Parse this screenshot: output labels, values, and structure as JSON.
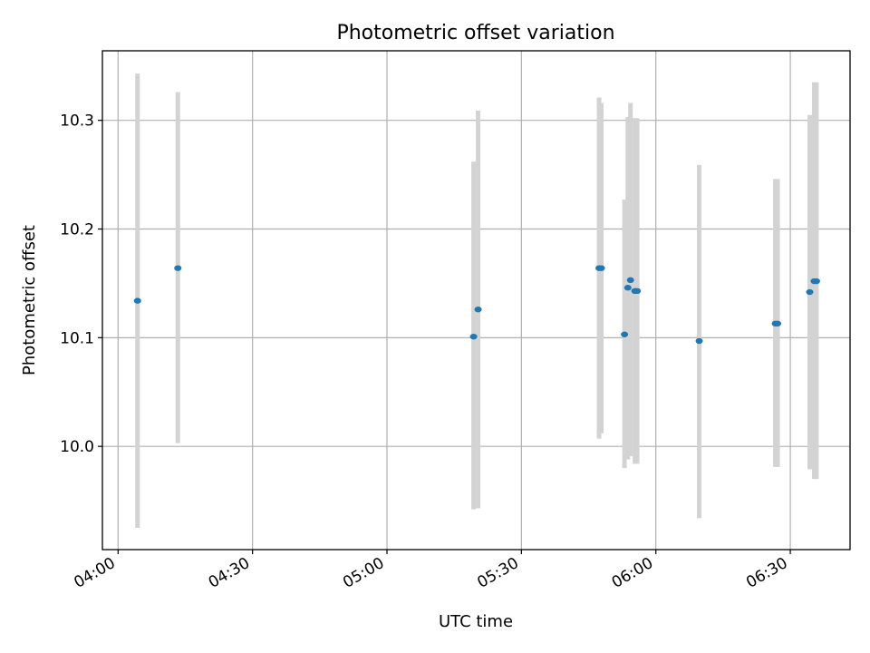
{
  "chart_data": {
    "type": "scatter",
    "title": "Photometric offset variation",
    "xlabel": "UTC time",
    "ylabel": "Photometric offset",
    "x_axis_type": "time",
    "x_ticks": [
      "04:00",
      "04:30",
      "05:00",
      "05:30",
      "06:00",
      "06:30"
    ],
    "y_ticks": [
      "10.0",
      "10.1",
      "10.2",
      "10.3"
    ],
    "xlim": [
      "03:56:30",
      "06:43:20"
    ],
    "ylim": [
      9.905,
      10.364
    ],
    "grid": true,
    "colors": {
      "point": "#1f77b4",
      "errorbar": "#d3d3d3",
      "grid": "#b0b0b0"
    },
    "points": [
      {
        "x": "04:04:20",
        "y": 10.134,
        "yerr_low": 9.925,
        "yerr_high": 10.343
      },
      {
        "x": "04:13:20",
        "y": 10.164,
        "yerr_low": 10.003,
        "yerr_high": 10.326
      },
      {
        "x": "05:19:20",
        "y": 10.101,
        "yerr_low": 9.942,
        "yerr_high": 10.262
      },
      {
        "x": "05:20:20",
        "y": 10.126,
        "yerr_low": 9.943,
        "yerr_high": 10.309
      },
      {
        "x": "05:47:20",
        "y": 10.164,
        "yerr_low": 10.007,
        "yerr_high": 10.321
      },
      {
        "x": "05:47:50",
        "y": 10.164,
        "yerr_low": 10.012,
        "yerr_high": 10.316
      },
      {
        "x": "05:53:00",
        "y": 10.103,
        "yerr_low": 9.98,
        "yerr_high": 10.227
      },
      {
        "x": "05:53:45",
        "y": 10.146,
        "yerr_low": 9.988,
        "yerr_high": 10.303
      },
      {
        "x": "05:54:20",
        "y": 10.153,
        "yerr_low": 9.991,
        "yerr_high": 10.316
      },
      {
        "x": "05:55:20",
        "y": 10.143,
        "yerr_low": 9.984,
        "yerr_high": 10.302
      },
      {
        "x": "05:55:50",
        "y": 10.143,
        "yerr_low": 9.984,
        "yerr_high": 10.302
      },
      {
        "x": "06:09:40",
        "y": 10.097,
        "yerr_low": 9.934,
        "yerr_high": 10.259
      },
      {
        "x": "06:26:40",
        "y": 10.113,
        "yerr_low": 9.981,
        "yerr_high": 10.246
      },
      {
        "x": "06:27:10",
        "y": 10.113,
        "yerr_low": 9.981,
        "yerr_high": 10.246
      },
      {
        "x": "06:34:20",
        "y": 10.142,
        "yerr_low": 9.979,
        "yerr_high": 10.305
      },
      {
        "x": "06:35:20",
        "y": 10.152,
        "yerr_low": 9.97,
        "yerr_high": 10.335
      },
      {
        "x": "06:35:50",
        "y": 10.152,
        "yerr_low": 9.97,
        "yerr_high": 10.335
      }
    ]
  }
}
